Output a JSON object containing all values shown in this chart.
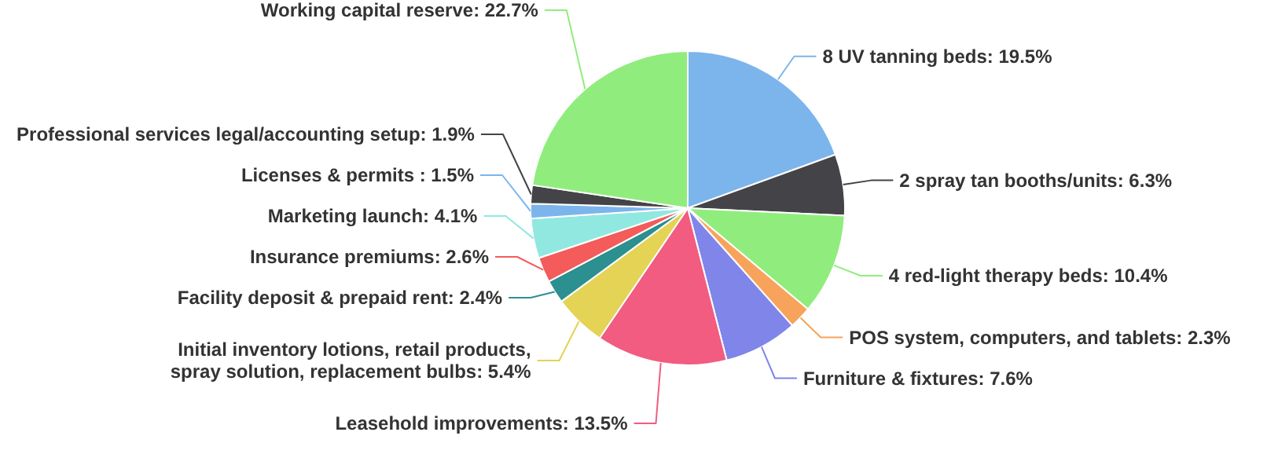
{
  "chart_data": {
    "type": "pie",
    "categories": [
      "8 UV tanning beds",
      "2 spray tan booths/units",
      "4 red-light therapy beds",
      "POS system, computers, and tablets",
      "Furniture & fixtures",
      "Leasehold improvements",
      "Initial inventory lotions, retail products, spray solution, replacement bulbs",
      "Facility deposit & prepaid rent",
      "Insurance premiums",
      "Marketing launch",
      "Licenses & permits ",
      "Professional services legal/accounting setup",
      "Working capital reserve"
    ],
    "values": [
      19.5,
      6.3,
      10.4,
      2.3,
      7.6,
      13.5,
      5.4,
      2.4,
      2.6,
      4.1,
      1.5,
      1.9,
      22.7
    ],
    "value_labels": [
      "19.5%",
      "6.3%",
      "10.4%",
      "2.3%",
      "7.6%",
      "13.5%",
      "5.4%",
      "2.4%",
      "2.6%",
      "4.1%",
      "1.5%",
      "1.9%",
      "22.7%"
    ],
    "colors": [
      "#7cb5ec",
      "#434348",
      "#90ed7d",
      "#f7a35c",
      "#8085e9",
      "#f15c80",
      "#e4d354",
      "#2b908f",
      "#f45b5b",
      "#91e8e1",
      "#7cb5ec",
      "#434348",
      "#90ed7d"
    ],
    "data_labels": true
  }
}
